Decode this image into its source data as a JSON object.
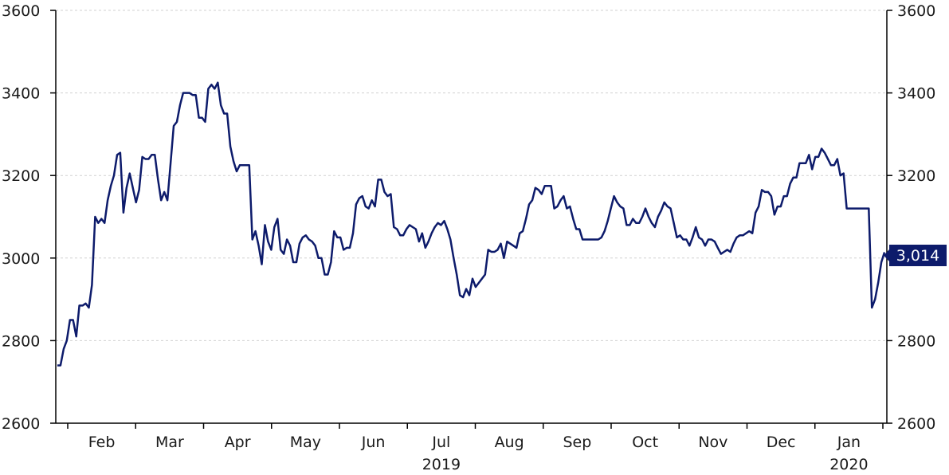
{
  "chart_data": {
    "type": "line",
    "title": "",
    "xlabel": "",
    "ylabel": "",
    "ylim": [
      2600,
      3600
    ],
    "yticks": [
      2600,
      2800,
      3000,
      3200,
      3400,
      3600
    ],
    "ytick_labels": [
      "2600",
      "2800",
      "3000",
      "3200",
      "3400",
      "3600"
    ],
    "y_axis_sides": [
      "left",
      "right"
    ],
    "grid": "horizontal dashed",
    "months": [
      "Feb",
      "Mar",
      "Apr",
      "May",
      "Jun",
      "Jul",
      "Aug",
      "Sep",
      "Oct",
      "Nov",
      "Dec",
      "Jan"
    ],
    "years": [
      {
        "label": "2019",
        "under_month": "Jul"
      },
      {
        "label": "2020",
        "under_month": "Jan"
      }
    ],
    "last_value_label": "3,014",
    "colors": {
      "line": "#0d1b6b",
      "axis": "#000000",
      "grid": "#d0d0d0",
      "label_bg": "#0d1b6b"
    },
    "series": [
      {
        "values": [
          2740,
          2740,
          2780,
          2800,
          2850,
          2850,
          2810,
          2885,
          2885,
          2890,
          2880,
          2935,
          3100,
          3085,
          3095,
          3085,
          3140,
          3175,
          3200,
          3250,
          3255,
          3110,
          3170,
          3205,
          3170,
          3135,
          3165,
          3245,
          3240,
          3240,
          3250,
          3250,
          3190,
          3140,
          3160,
          3140,
          3230,
          3320,
          3330,
          3370,
          3400,
          3400,
          3400,
          3395,
          3395,
          3340,
          3340,
          3330,
          3410,
          3420,
          3410,
          3425,
          3370,
          3350,
          3350,
          3270,
          3235,
          3210,
          3225,
          3225,
          3225,
          3225,
          3045,
          3065,
          3030,
          2985,
          3080,
          3040,
          3020,
          3075,
          3095,
          3020,
          3010,
          3045,
          3030,
          2990,
          2990,
          3035,
          3050,
          3055,
          3045,
          3040,
          3030,
          3000,
          3000,
          2960,
          2960,
          2990,
          3065,
          3050,
          3050,
          3020,
          3025,
          3025,
          3060,
          3130,
          3145,
          3150,
          3125,
          3120,
          3140,
          3125,
          3190,
          3190,
          3160,
          3150,
          3155,
          3075,
          3070,
          3055,
          3055,
          3070,
          3080,
          3075,
          3070,
          3040,
          3060,
          3025,
          3040,
          3060,
          3075,
          3085,
          3080,
          3090,
          3070,
          3045,
          3000,
          2960,
          2910,
          2905,
          2925,
          2910,
          2950,
          2930,
          2940,
          2950,
          2960,
          3020,
          3015,
          3015,
          3020,
          3035,
          3000,
          3040,
          3035,
          3030,
          3025,
          3060,
          3065,
          3095,
          3130,
          3140,
          3170,
          3165,
          3155,
          3175,
          3175,
          3175,
          3120,
          3125,
          3140,
          3150,
          3120,
          3125,
          3095,
          3070,
          3070,
          3045,
          3045,
          3045,
          3045,
          3045,
          3045,
          3050,
          3065,
          3090,
          3120,
          3150,
          3135,
          3125,
          3120,
          3080,
          3080,
          3095,
          3085,
          3085,
          3100,
          3120,
          3100,
          3085,
          3075,
          3100,
          3115,
          3135,
          3125,
          3120,
          3085,
          3050,
          3055,
          3045,
          3045,
          3030,
          3050,
          3075,
          3050,
          3045,
          3030,
          3045,
          3045,
          3040,
          3025,
          3010,
          3015,
          3020,
          3015,
          3035,
          3050,
          3055,
          3055,
          3060,
          3065,
          3060,
          3110,
          3125,
          3165,
          3160,
          3160,
          3150,
          3105,
          3125,
          3125,
          3150,
          3150,
          3180,
          3195,
          3195,
          3230,
          3230,
          3230,
          3250,
          3215,
          3245,
          3245,
          3265,
          3255,
          3240,
          3225,
          3225,
          3240,
          3200,
          3205,
          3120,
          3120,
          3120,
          3120,
          3120,
          3120,
          3120,
          3120,
          2880,
          2900,
          2940,
          2990,
          3014
        ]
      }
    ]
  }
}
